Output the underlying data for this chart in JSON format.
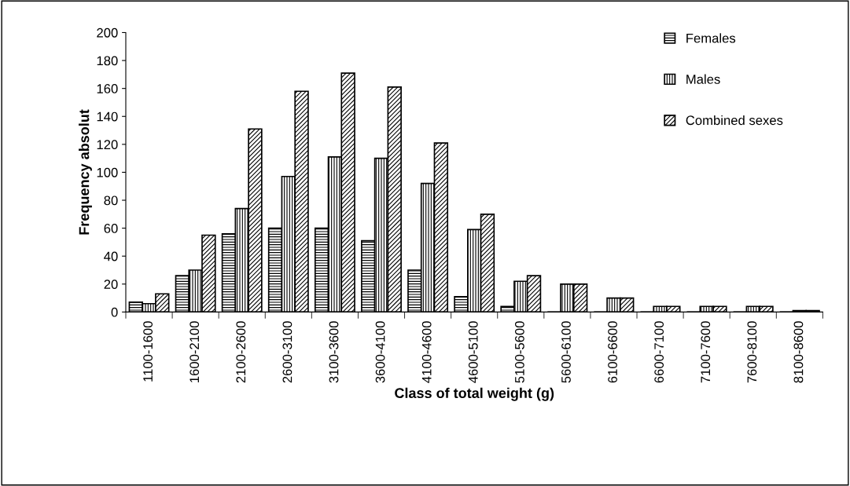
{
  "chart_data": {
    "type": "bar",
    "xlabel": "Class of total weight (g)",
    "ylabel": "Frequency absolut",
    "categories": [
      "1100-1600",
      "1600-2100",
      "2100-2600",
      "2600-3100",
      "3100-3600",
      "3600-4100",
      "4100-4600",
      "4600-5100",
      "5100-5600",
      "5600-6100",
      "6100-6600",
      "6600-7100",
      "7100-7600",
      "7600-8100",
      "8100-8600"
    ],
    "series": [
      {
        "name": "Females",
        "color": "#000000",
        "values": [
          7,
          26,
          56,
          60,
          60,
          51,
          30,
          11,
          4,
          0,
          0,
          0,
          0,
          0,
          0
        ]
      },
      {
        "name": "Males",
        "color": "#000000",
        "values": [
          6,
          30,
          74,
          97,
          111,
          110,
          92,
          59,
          22,
          20,
          10,
          4,
          4,
          4,
          1
        ]
      },
      {
        "name": "Combined sexes",
        "color": "#000000",
        "values": [
          13,
          55,
          131,
          158,
          171,
          161,
          121,
          70,
          26,
          20,
          10,
          4,
          4,
          4,
          1
        ]
      }
    ],
    "ylim": [
      0,
      200
    ],
    "yticks": [
      0,
      20,
      40,
      60,
      80,
      100,
      120,
      140,
      160,
      180,
      200
    ],
    "grid": false,
    "legend": "top right"
  }
}
